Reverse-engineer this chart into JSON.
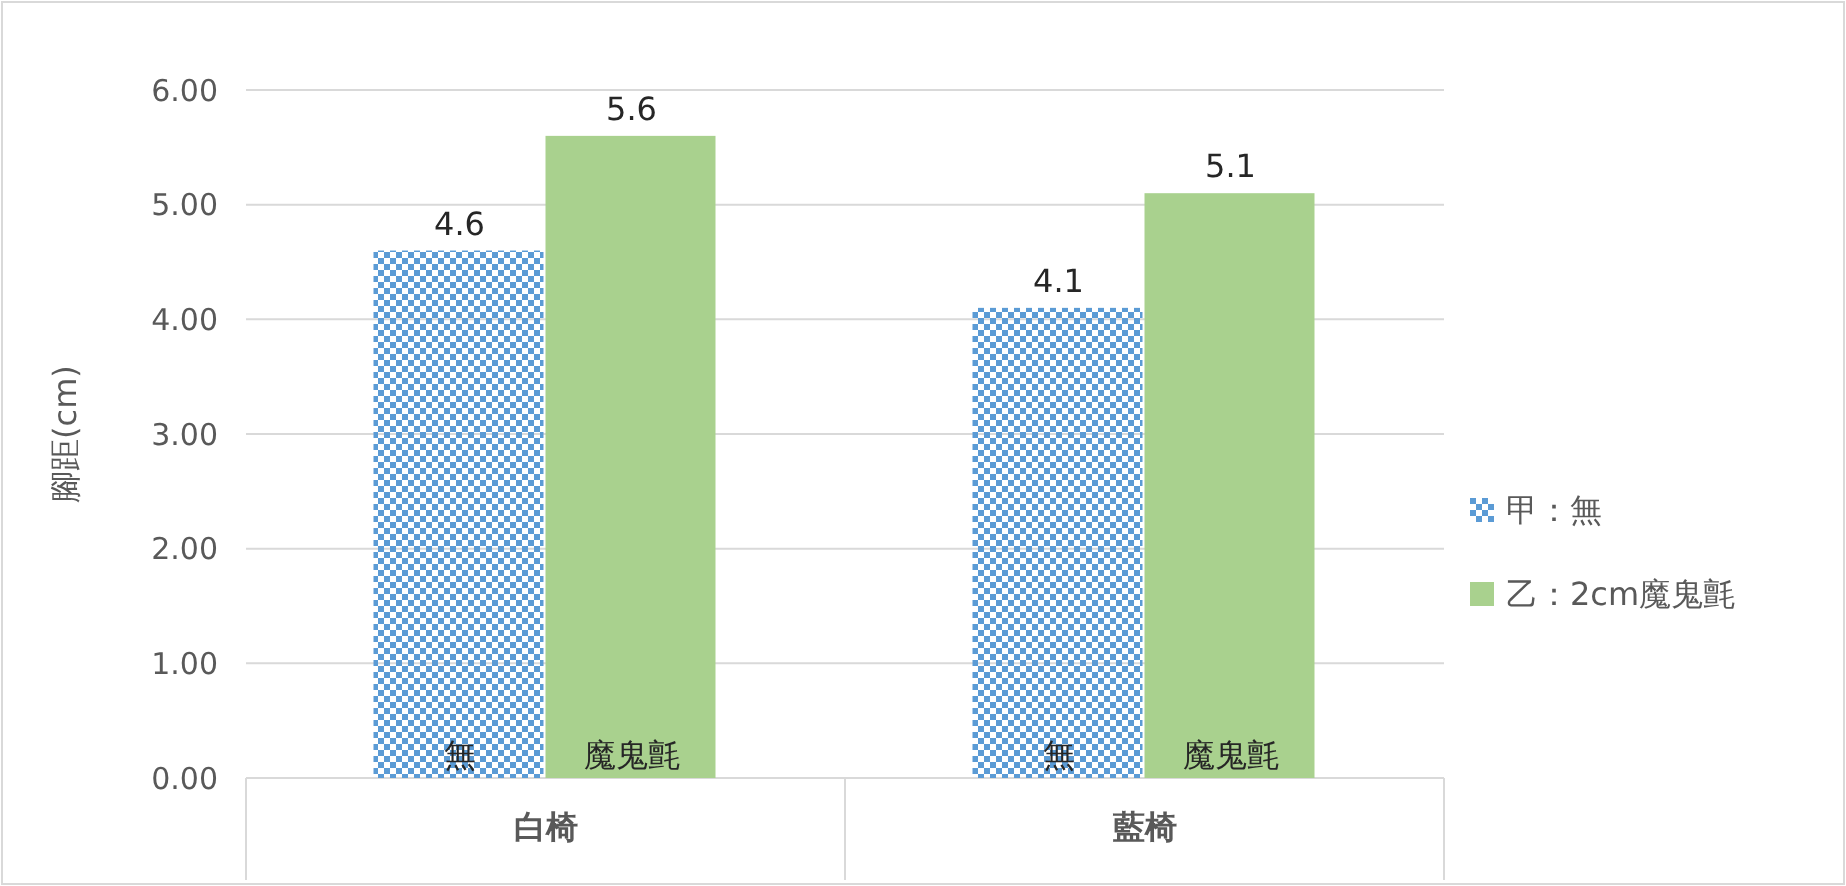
{
  "chart_data": {
    "type": "bar",
    "ylabel": "腳距(cm)",
    "categories": [
      "白椅",
      "藍椅"
    ],
    "series": [
      {
        "name": "甲：無",
        "color": "#5b9bd5",
        "values": [
          4.6,
          4.1
        ]
      },
      {
        "name": "乙：2cm魔鬼氈",
        "color": "#a9d18e",
        "values": [
          5.6,
          5.1
        ]
      }
    ],
    "ylim": [
      0,
      6
    ],
    "yticks": [
      {
        "value": 0,
        "label": "0.00"
      },
      {
        "value": 1,
        "label": "1.00"
      },
      {
        "value": 2,
        "label": "2.00"
      },
      {
        "value": 3,
        "label": "3.00"
      },
      {
        "value": 4,
        "label": "4.00"
      },
      {
        "value": 5,
        "label": "5.00"
      },
      {
        "value": 6,
        "label": "6.00"
      }
    ],
    "grid": "y",
    "legend": "right",
    "data_labels": true,
    "annotations": [
      "無",
      "魔鬼氈",
      "無",
      "魔鬼氈"
    ]
  }
}
